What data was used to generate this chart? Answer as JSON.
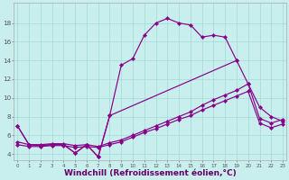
{
  "background_color": "#c8eeee",
  "line_color": "#880088",
  "grid_color": "#a8dddd",
  "xlabel": "Windchill (Refroidissement éolien,°C)",
  "xlabel_fontsize": 6.5,
  "xlim": [
    -0.3,
    23.3
  ],
  "ylim": [
    3.3,
    20.2
  ],
  "yticks": [
    4,
    6,
    8,
    10,
    12,
    14,
    16,
    18
  ],
  "curves": [
    {
      "x": [
        0,
        1,
        2,
        3,
        4,
        5,
        6,
        7,
        8,
        9,
        10,
        11,
        12,
        13,
        14,
        15,
        16,
        17,
        18,
        19
      ],
      "y": [
        7.0,
        5.0,
        4.9,
        5.0,
        5.0,
        4.1,
        5.0,
        3.7,
        8.1,
        13.5,
        14.2,
        16.7,
        18.0,
        18.5,
        18.0,
        17.8,
        16.5,
        16.7,
        16.5,
        14.0
      ]
    },
    {
      "x": [
        0,
        1,
        2,
        3,
        4,
        5,
        6,
        7,
        8,
        19,
        20,
        21,
        22,
        23
      ],
      "y": [
        7.0,
        5.0,
        4.9,
        5.0,
        5.0,
        4.1,
        5.0,
        3.7,
        8.1,
        14.0,
        11.5,
        9.0,
        8.0,
        7.5
      ]
    },
    {
      "x": [
        0,
        1,
        2,
        3,
        4,
        5,
        6,
        7,
        8,
        9,
        10,
        11,
        12,
        13,
        14,
        15,
        16,
        17,
        18,
        19,
        20,
        21,
        22,
        23
      ],
      "y": [
        5.3,
        5.0,
        5.0,
        5.1,
        5.1,
        4.9,
        5.0,
        4.8,
        5.2,
        5.5,
        6.0,
        6.5,
        7.0,
        7.5,
        8.0,
        8.5,
        9.2,
        9.8,
        10.3,
        10.8,
        11.5,
        7.8,
        7.3,
        7.7
      ]
    },
    {
      "x": [
        0,
        1,
        2,
        3,
        4,
        5,
        6,
        7,
        8,
        9,
        10,
        11,
        12,
        13,
        14,
        15,
        16,
        17,
        18,
        19,
        20,
        21,
        22,
        23
      ],
      "y": [
        5.0,
        4.8,
        4.8,
        4.9,
        4.9,
        4.7,
        4.8,
        4.7,
        5.0,
        5.3,
        5.8,
        6.3,
        6.7,
        7.2,
        7.7,
        8.1,
        8.7,
        9.2,
        9.7,
        10.2,
        10.7,
        7.3,
        6.8,
        7.2
      ]
    }
  ]
}
